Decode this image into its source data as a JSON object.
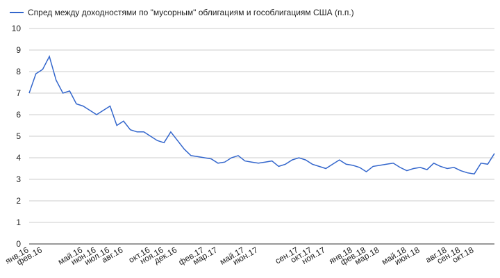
{
  "chart_data": {
    "type": "line",
    "categories": [
      "янв.16",
      null,
      "фев.16",
      null,
      null,
      null,
      null,
      null,
      "май.16",
      null,
      "июн.16",
      null,
      "июл.16",
      null,
      "авг.16",
      null,
      null,
      null,
      "окт.16",
      null,
      "ноя.16",
      null,
      "дек.16",
      null,
      null,
      null,
      "фев.17",
      null,
      "мар.17",
      null,
      null,
      null,
      "май.17",
      null,
      "июн.17",
      null,
      null,
      null,
      null,
      null,
      "сен.17",
      null,
      "окт.17",
      null,
      "ноя.17",
      null,
      null,
      null,
      "янв.18",
      null,
      "фев.18",
      null,
      "мар.18",
      null,
      null,
      null,
      "май.18",
      null,
      "июн.18",
      null,
      null,
      null,
      "авг.18",
      null,
      "сен.18",
      null,
      "окт.18",
      null,
      null,
      null
    ],
    "series": [
      {
        "name": "Спред между доходностями по \"мусорным\" облигациям и гособлигациям США (п.п.)",
        "color": "#3366cc",
        "values": [
          7.0,
          7.9,
          8.1,
          8.7,
          7.6,
          7.0,
          7.1,
          6.5,
          6.4,
          6.2,
          6.0,
          6.2,
          6.4,
          5.5,
          5.7,
          5.3,
          5.2,
          5.2,
          5.0,
          4.8,
          4.7,
          5.2,
          4.8,
          4.4,
          4.1,
          4.05,
          4.0,
          3.95,
          3.75,
          3.8,
          4.0,
          4.1,
          3.85,
          3.8,
          3.75,
          3.8,
          3.85,
          3.6,
          3.7,
          3.9,
          4.0,
          3.9,
          3.7,
          3.6,
          3.5,
          3.7,
          3.9,
          3.7,
          3.65,
          3.55,
          3.35,
          3.6,
          3.65,
          3.7,
          3.75,
          3.55,
          3.4,
          3.5,
          3.55,
          3.45,
          3.75,
          3.6,
          3.5,
          3.55,
          3.4,
          3.3,
          3.25,
          3.75,
          3.7,
          4.2
        ]
      }
    ],
    "ylim": [
      0,
      10
    ],
    "yticks": [
      0,
      1,
      2,
      3,
      4,
      5,
      6,
      7,
      8,
      9,
      10
    ],
    "grid": true,
    "legend": "top"
  }
}
